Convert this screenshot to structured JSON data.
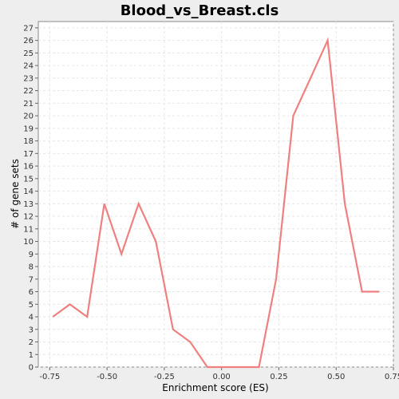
{
  "chart_data": {
    "type": "line",
    "title": "Blood_vs_Breast.cls",
    "xlabel": "Enrichment score (ES)",
    "ylabel": "# of gene sets",
    "xlim": [
      -0.8,
      0.75
    ],
    "ylim": [
      0,
      27.5
    ],
    "xticks": [
      -0.75,
      -0.5,
      -0.25,
      0.0,
      0.25,
      0.5,
      0.75
    ],
    "xtick_labels": [
      "-0.75",
      "-0.50",
      "-0.25",
      "0.00",
      "0.25",
      "0.50",
      "0.75"
    ],
    "yticks": [
      0,
      1,
      2,
      3,
      4,
      5,
      6,
      7,
      8,
      9,
      10,
      11,
      12,
      13,
      14,
      15,
      16,
      17,
      18,
      19,
      20,
      21,
      22,
      23,
      24,
      25,
      26,
      27
    ],
    "grid": true,
    "series": [
      {
        "color": "#f08080",
        "x": [
          -0.737,
          -0.662,
          -0.587,
          -0.512,
          -0.437,
          -0.362,
          -0.287,
          -0.212,
          -0.137,
          -0.062,
          0.013,
          0.088,
          0.163,
          0.238,
          0.313,
          0.388,
          0.463,
          0.538,
          0.613,
          0.688
        ],
        "y": [
          4,
          5,
          4,
          13,
          9,
          13,
          10,
          3,
          2,
          0,
          0,
          0,
          0,
          7,
          20,
          23,
          26,
          13,
          6,
          6
        ]
      }
    ]
  }
}
